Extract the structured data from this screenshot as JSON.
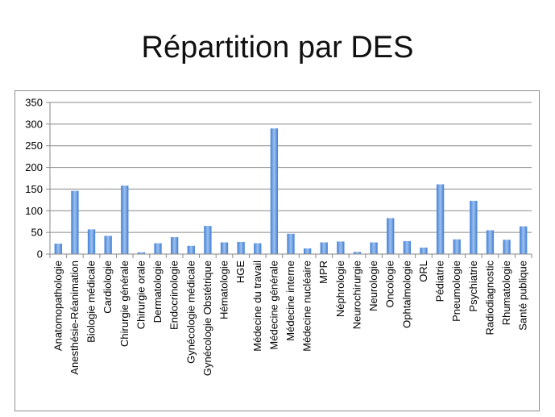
{
  "chart_data": {
    "type": "bar",
    "title": "Répartition par DES",
    "ylim": [
      0,
      350
    ],
    "yticks": [
      0,
      50,
      100,
      150,
      200,
      250,
      300,
      350
    ],
    "grid": true,
    "bar_color_top": "#9ec0ee",
    "bar_color_bottom": "#3f7fd6",
    "categories": [
      "Anatomopathologie",
      "Anesthésie-Réanimation",
      "Biologie médicale",
      "Cardiologie",
      "Chirurgie générale",
      "Chirurgie orale",
      "Dermatologie",
      "Endocrinologie",
      "Gynécologie médicale",
      "Gynécologie Obstétrique",
      "Hématologie",
      "HGE",
      "Médecine du travail",
      "Médecine générale",
      "Médecine interne",
      "Médecine nucléaire",
      "MPR",
      "Néphrologie",
      "Neurochirurgie",
      "Neurologie",
      "Oncologie",
      "Ophtalmologie",
      "ORL",
      "Pédiatrie",
      "Pneumologie",
      "Psychiatrie",
      "Radiodiagnostic",
      "Rhumatologie",
      "Santé publique"
    ],
    "values": [
      24,
      146,
      57,
      42,
      158,
      4,
      25,
      39,
      19,
      65,
      27,
      28,
      25,
      290,
      47,
      13,
      27,
      29,
      5,
      27,
      83,
      30,
      15,
      161,
      34,
      123,
      55,
      33,
      64
    ]
  }
}
